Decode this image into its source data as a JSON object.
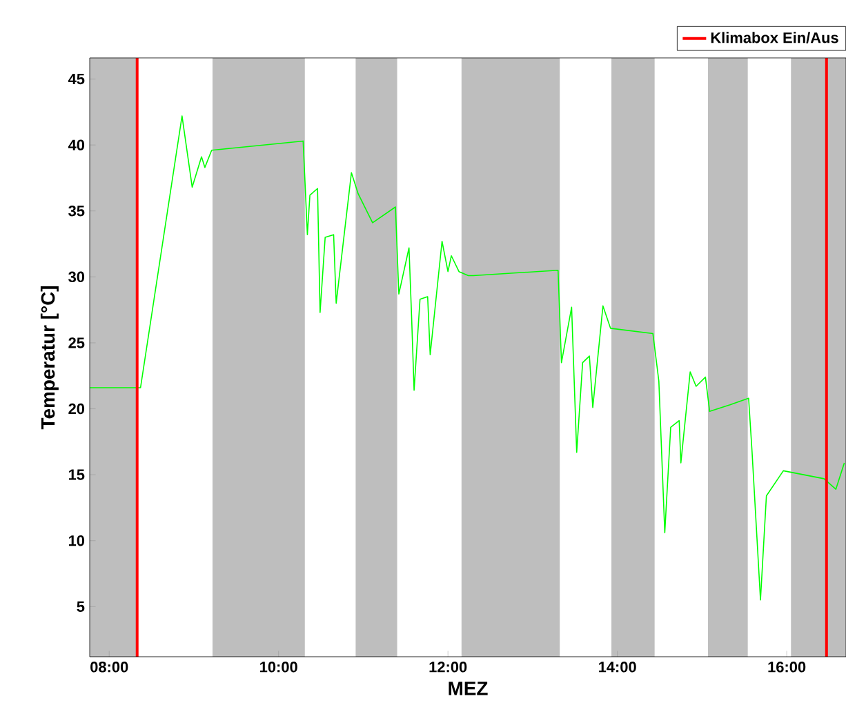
{
  "chart_data": {
    "type": "line",
    "xlabel": "MEZ",
    "ylabel": "Temperatur [°C]",
    "x": [
      7.77,
      8.37,
      8.86,
      8.98,
      9.09,
      9.13,
      9.21,
      10.29,
      10.34,
      10.37,
      10.46,
      10.49,
      10.55,
      10.65,
      10.68,
      10.86,
      10.94,
      11.11,
      11.38,
      11.42,
      11.54,
      11.57,
      11.6,
      11.67,
      11.76,
      11.79,
      11.93,
      12.0,
      12.04,
      12.13,
      12.24,
      12.3,
      13.3,
      13.34,
      13.46,
      13.52,
      13.59,
      13.67,
      13.71,
      13.83,
      13.92,
      14.42,
      14.49,
      14.56,
      14.63,
      14.73,
      14.75,
      14.86,
      14.93,
      15.04,
      15.09,
      15.33,
      15.55,
      15.59,
      15.69,
      15.76,
      15.96,
      16.44,
      16.58,
      16.68
    ],
    "series": [
      {
        "color": "#00ff00",
        "values": [
          21.6,
          21.6,
          42.2,
          36.8,
          39.1,
          38.3,
          39.6,
          40.3,
          33.2,
          36.2,
          36.7,
          27.3,
          33.0,
          33.2,
          28.0,
          37.9,
          36.3,
          34.1,
          35.3,
          28.7,
          32.2,
          27.1,
          21.4,
          28.3,
          28.5,
          24.1,
          32.7,
          30.4,
          31.6,
          30.4,
          30.1,
          30.1,
          30.5,
          23.5,
          27.7,
          16.7,
          23.5,
          24.0,
          20.1,
          27.8,
          26.1,
          25.7,
          22.1,
          10.6,
          18.6,
          19.1,
          15.9,
          22.8,
          21.7,
          22.4,
          19.8,
          20.3,
          20.8,
          16.8,
          5.5,
          13.4,
          15.3,
          14.7,
          13.9,
          15.9
        ]
      }
    ],
    "xlim": [
      7.77,
      16.7
    ],
    "ylim": [
      1.2,
      46.6
    ],
    "xticks": [
      {
        "value": 8,
        "label": "08:00"
      },
      {
        "value": 10,
        "label": "10:00"
      },
      {
        "value": 12,
        "label": "12:00"
      },
      {
        "value": 14,
        "label": "14:00"
      },
      {
        "value": 16,
        "label": "16:00"
      }
    ],
    "yticks": [
      5,
      10,
      15,
      20,
      25,
      30,
      35,
      40,
      45
    ],
    "bands": [
      {
        "axis": "x",
        "from": 7.77,
        "to": 8.33,
        "color": "#bebebe"
      },
      {
        "axis": "x",
        "from": 9.22,
        "to": 10.31,
        "color": "#bebebe"
      },
      {
        "axis": "x",
        "from": 10.91,
        "to": 11.4,
        "color": "#bebebe"
      },
      {
        "axis": "x",
        "from": 12.16,
        "to": 13.32,
        "color": "#bebebe"
      },
      {
        "axis": "x",
        "from": 13.93,
        "to": 14.44,
        "color": "#bebebe"
      },
      {
        "axis": "x",
        "from": 15.07,
        "to": 15.54,
        "color": "#bebebe"
      },
      {
        "axis": "x",
        "from": 16.05,
        "to": 16.7,
        "color": "#bebebe"
      }
    ],
    "ref_lines": [
      {
        "axis": "x",
        "value": 8.33,
        "label": "Klimabox Ein/Aus",
        "color": "#ff0000"
      },
      {
        "axis": "x",
        "value": 16.47,
        "color": "#ff0000"
      }
    ],
    "legend": "top right",
    "grid": false
  }
}
